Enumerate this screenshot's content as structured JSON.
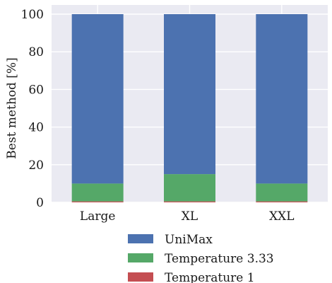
{
  "chart_data": {
    "type": "bar",
    "stacked": true,
    "categories": [
      "Large",
      "XL",
      "XXL"
    ],
    "series": [
      {
        "name": "Temperature 1",
        "values": [
          0.5,
          0.5,
          0.5
        ],
        "color": "#c44e52"
      },
      {
        "name": "Temperature 3.33",
        "values": [
          9.5,
          14.5,
          9.5
        ],
        "color": "#55a868"
      },
      {
        "name": "UniMax",
        "values": [
          90,
          85,
          90
        ],
        "color": "#4c72b0"
      }
    ],
    "legend_order": [
      "UniMax",
      "Temperature 3.33",
      "Temperature 1"
    ],
    "ylabel": "Best method [%]",
    "xlabel": "",
    "ylim": [
      0,
      100
    ],
    "yticks": [
      0,
      20,
      40,
      60,
      80,
      100
    ],
    "grid": true,
    "background": "#eaeaf2",
    "legend_position": "bottom"
  }
}
